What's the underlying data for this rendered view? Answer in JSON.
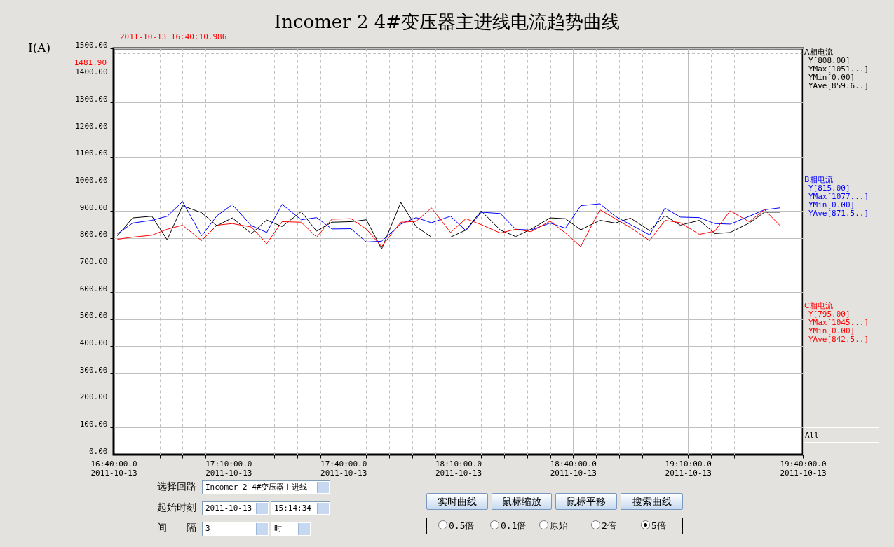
{
  "chart_data": {
    "type": "line",
    "title": "Incomer 2 4#变压器主进线电流趋势曲线",
    "ylabel": "I(A)",
    "x": [
      "2011-10-13T16:41",
      "2011-10-13T16:45",
      "2011-10-13T16:50",
      "2011-10-13T16:54",
      "2011-10-13T16:58",
      "2011-10-13T17:03",
      "2011-10-13T17:07",
      "2011-10-13T17:11",
      "2011-10-13T17:16",
      "2011-10-13T17:20",
      "2011-10-13T17:24",
      "2011-10-13T17:29",
      "2011-10-13T17:33",
      "2011-10-13T17:37",
      "2011-10-13T17:42",
      "2011-10-13T17:46",
      "2011-10-13T17:50",
      "2011-10-13T17:55",
      "2011-10-13T17:59",
      "2011-10-13T18:03",
      "2011-10-13T18:08",
      "2011-10-13T18:12",
      "2011-10-13T18:16",
      "2011-10-13T18:21",
      "2011-10-13T18:25",
      "2011-10-13T18:29",
      "2011-10-13T18:34",
      "2011-10-13T18:38",
      "2011-10-13T18:42",
      "2011-10-13T18:47",
      "2011-10-13T18:51",
      "2011-10-13T18:55",
      "2011-10-13T19:00",
      "2011-10-13T19:04",
      "2011-10-13T19:08",
      "2011-10-13T19:13",
      "2011-10-13T19:17",
      "2011-10-13T19:21",
      "2011-10-13T19:26",
      "2011-10-13T19:30",
      "2011-10-13T19:34"
    ],
    "series": [
      {
        "name": "A相电流",
        "color": "#000000",
        "values": [
          808,
          874,
          880,
          793,
          919,
          893,
          845,
          874,
          816,
          866,
          842,
          897,
          825,
          858,
          860,
          867,
          759,
          931,
          842,
          803,
          803,
          829,
          900,
          829,
          805,
          832,
          874,
          871,
          830,
          865,
          855,
          873,
          827,
          882,
          847,
          865,
          816,
          820,
          855,
          895,
          895
        ]
      },
      {
        "name": "B相电流",
        "color": "#0000ff",
        "values": [
          815,
          855,
          865,
          880,
          934,
          808,
          882,
          923,
          845,
          820,
          924,
          867,
          875,
          833,
          834,
          785,
          788,
          851,
          875,
          856,
          880,
          827,
          895,
          890,
          832,
          829,
          855,
          836,
          919,
          926,
          880,
          849,
          811,
          910,
          877,
          875,
          853,
          851,
          880,
          904,
          911
        ]
      },
      {
        "name": "C相电流",
        "color": "#ff0000",
        "values": [
          795,
          803,
          810,
          832,
          847,
          790,
          847,
          853,
          840,
          779,
          860,
          858,
          803,
          869,
          871,
          833,
          768,
          858,
          861,
          911,
          820,
          871,
          849,
          818,
          832,
          823,
          862,
          818,
          768,
          904,
          871,
          838,
          790,
          865,
          856,
          813,
          825,
          900,
          860,
          904,
          846
        ]
      }
    ],
    "xlim": [
      "2011-10-13T16:40",
      "2011-10-13T19:40"
    ],
    "xticks": [
      {
        "value": "2011-10-13T16:40",
        "label": "16:40:00.0\n2011-10-13"
      },
      {
        "value": "2011-10-13T16:46",
        "label": null
      },
      {
        "value": "2011-10-13T16:52",
        "label": null
      },
      {
        "value": "2011-10-13T16:58",
        "label": null
      },
      {
        "value": "2011-10-13T17:04",
        "label": null
      },
      {
        "value": "2011-10-13T17:10",
        "label": "17:10:00.0\n2011-10-13"
      },
      {
        "value": "2011-10-13T17:16",
        "label": null
      },
      {
        "value": "2011-10-13T17:22",
        "label": null
      },
      {
        "value": "2011-10-13T17:28",
        "label": null
      },
      {
        "value": "2011-10-13T17:34",
        "label": null
      },
      {
        "value": "2011-10-13T17:40",
        "label": "17:40:00.0\n2011-10-13"
      },
      {
        "value": "2011-10-13T17:46",
        "label": null
      },
      {
        "value": "2011-10-13T17:52",
        "label": null
      },
      {
        "value": "2011-10-13T17:58",
        "label": null
      },
      {
        "value": "2011-10-13T18:04",
        "label": null
      },
      {
        "value": "2011-10-13T18:10",
        "label": "18:10:00.0\n2011-10-13"
      },
      {
        "value": "2011-10-13T18:16",
        "label": null
      },
      {
        "value": "2011-10-13T18:22",
        "label": null
      },
      {
        "value": "2011-10-13T18:28",
        "label": null
      },
      {
        "value": "2011-10-13T18:34",
        "label": null
      },
      {
        "value": "2011-10-13T18:40",
        "label": "18:40:00.0\n2011-10-13"
      },
      {
        "value": "2011-10-13T18:46",
        "label": null
      },
      {
        "value": "2011-10-13T18:52",
        "label": null
      },
      {
        "value": "2011-10-13T18:58",
        "label": null
      },
      {
        "value": "2011-10-13T19:04",
        "label": null
      },
      {
        "value": "2011-10-13T19:10",
        "label": "19:10:00.0\n2011-10-13"
      },
      {
        "value": "2011-10-13T19:16",
        "label": null
      },
      {
        "value": "2011-10-13T19:22",
        "label": null
      },
      {
        "value": "2011-10-13T19:28",
        "label": null
      },
      {
        "value": "2011-10-13T19:34",
        "label": null
      },
      {
        "value": "2011-10-13T19:40",
        "label": "19:40:00.0\n2011-10-13"
      }
    ],
    "ylim": [
      0,
      1500
    ],
    "yticks": [
      {
        "value": 0,
        "label": "0.00"
      },
      {
        "value": 100,
        "label": "100.00"
      },
      {
        "value": 200,
        "label": "200.00"
      },
      {
        "value": 300,
        "label": "300.00"
      },
      {
        "value": 400,
        "label": "400.00"
      },
      {
        "value": 500,
        "label": "500.00"
      },
      {
        "value": 600,
        "label": "600.00"
      },
      {
        "value": 700,
        "label": "700.00"
      },
      {
        "value": 800,
        "label": "800.00"
      },
      {
        "value": 900,
        "label": "900.00"
      },
      {
        "value": 1000,
        "label": "1000.00"
      },
      {
        "value": 1100,
        "label": "1100.00"
      },
      {
        "value": 1200,
        "label": "1200.00"
      },
      {
        "value": 1300,
        "label": "1300.00"
      },
      {
        "value": 1400,
        "label": "1400.00"
      },
      {
        "value": 1500,
        "label": "1500.00"
      }
    ],
    "ref_lines": [
      {
        "axis": "y",
        "value": 1481.9,
        "label": "1481.90",
        "color": "#808080",
        "line_style": "dashed"
      },
      {
        "axis": "x",
        "value": "2011-10-13T16:40:10.986",
        "label": "2011-10-13 16:40:10.986",
        "color": "#808080",
        "line_style": "dashed"
      }
    ],
    "grid": true,
    "legend": "right",
    "annotations": [
      "Y[808.00]",
      "YMax[1051...]",
      "YMin[0.00]",
      "YAve[859.6..]",
      "Y[815.00]",
      "YMax[1077...]",
      "YMin[0.00]",
      "YAve[871.5..]",
      "Y[795.00]",
      "YMax[1045...]",
      "YMin[0.00]",
      "YAve[842.5..]",
      "All",
      "选择回路",
      "Incomer 2 4#变压器主进线",
      "起始时刻",
      "2011-10-13",
      "15:14:34",
      "间　　隔",
      "3",
      "时",
      "实时曲线",
      "鼠标缩放",
      "鼠标平移",
      "搜索曲线",
      "0.5倍",
      "0.1倍",
      "原始",
      "2倍",
      "5倍"
    ]
  }
}
